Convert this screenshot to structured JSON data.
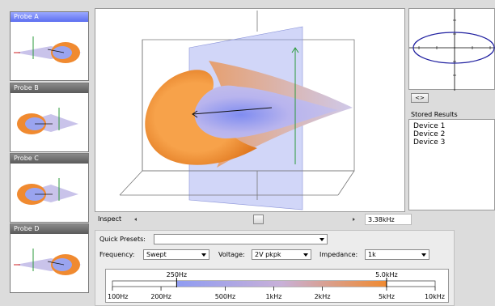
{
  "probes": [
    {
      "label": "Probe A",
      "active": true
    },
    {
      "label": "Probe B",
      "active": false
    },
    {
      "label": "Probe C",
      "active": false
    },
    {
      "label": "Probe D",
      "active": false
    }
  ],
  "inspect": {
    "label": "Inspect",
    "value": "3.38kHz",
    "position": 0.57
  },
  "right_panel": {
    "toggle_label": "<>",
    "stored_title": "Stored Results",
    "stored_items": [
      "Device 1",
      "Device 2",
      "Device 3"
    ]
  },
  "controls": {
    "quick_presets_label": "Quick Presets:",
    "quick_presets_value": "",
    "frequency_label": "Frequency:",
    "frequency_value": "Swept",
    "voltage_label": "Voltage:",
    "voltage_value": "2V pkpk",
    "impedance_label": "Impedance:",
    "impedance_value": "1k"
  },
  "frequency_bar": {
    "low_marker": "250Hz",
    "high_marker": "5.0kHz",
    "low_value": 250,
    "high_value": 5000,
    "ticks": [
      "100Hz",
      "200Hz",
      "500Hz",
      "1kHz",
      "2kHz",
      "5kHz",
      "10kHz"
    ],
    "tick_values": [
      100,
      200,
      500,
      1000,
      2000,
      5000,
      10000
    ],
    "range": [
      100,
      10000
    ],
    "scale": "log"
  },
  "colors": {
    "orange": "#f08a30",
    "blue": "#8f9cf2",
    "active_header": "#6a7cf0"
  }
}
